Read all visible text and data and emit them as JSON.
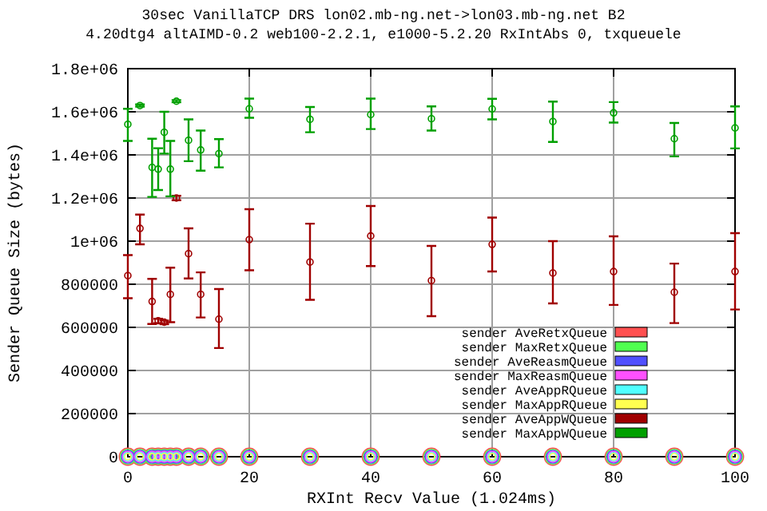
{
  "chart_data": {
    "type": "scatter",
    "title": "30sec VanillaTCP DRS lon02.mb-ng.net->lon03.mb-ng.net B2",
    "subtitle": "4.20dtg4 altAIMD-0.2 web100-2.2.1, e1000-5.2.20 RxIntAbs 0, txqueuele",
    "xlabel": "RXInt Recv Value (1.024ms)",
    "ylabel": "Sender Queue Size (bytes)",
    "x": [
      0,
      2,
      4,
      5,
      6,
      7,
      8,
      10,
      12,
      15,
      20,
      30,
      40,
      50,
      60,
      70,
      80,
      90,
      100
    ],
    "xlim": [
      0,
      100
    ],
    "xticks": [
      0,
      20,
      40,
      60,
      80,
      100
    ],
    "ylim": [
      0,
      1800000
    ],
    "yticks": [
      0,
      200000,
      400000,
      600000,
      800000,
      {
        "value": 1000000,
        "label": "1e+06"
      },
      {
        "value": 1200000,
        "label": "1.2e+06"
      },
      {
        "value": 1400000,
        "label": "1.4e+06"
      },
      {
        "value": 1600000,
        "label": "1.6e+06"
      },
      {
        "value": 1800000,
        "label": "1.8e+06"
      }
    ],
    "grid": true,
    "legend": "bottom right",
    "marker": "circle",
    "series": [
      {
        "name": "sender AveRetxQueue",
        "color": "#ff5050",
        "values": [
          0,
          0,
          0,
          0,
          0,
          0,
          0,
          0,
          0,
          0,
          0,
          0,
          0,
          0,
          0,
          0,
          0,
          0,
          0
        ]
      },
      {
        "name": "sender MaxRetxQueue",
        "color": "#50ff50",
        "values": [
          0,
          0,
          0,
          0,
          0,
          0,
          0,
          0,
          0,
          0,
          0,
          0,
          0,
          0,
          0,
          0,
          0,
          0,
          0
        ]
      },
      {
        "name": "sender AveReasmQueue",
        "color": "#5050ff",
        "values": [
          0,
          0,
          0,
          0,
          0,
          0,
          0,
          0,
          0,
          0,
          0,
          0,
          0,
          0,
          0,
          0,
          0,
          0,
          0
        ]
      },
      {
        "name": "sender MaxReasmQueue",
        "color": "#ff50ff",
        "values": [
          0,
          0,
          0,
          0,
          0,
          0,
          0,
          0,
          0,
          0,
          0,
          0,
          0,
          0,
          0,
          0,
          0,
          0,
          0
        ]
      },
      {
        "name": "sender AveAppRQueue",
        "color": "#50ffff",
        "values": [
          0,
          0,
          0,
          0,
          0,
          0,
          0,
          0,
          0,
          0,
          0,
          0,
          0,
          0,
          0,
          0,
          0,
          0,
          0
        ]
      },
      {
        "name": "sender MaxAppRQueue",
        "color": "#ffff50",
        "values": [
          0,
          0,
          0,
          0,
          0,
          0,
          0,
          0,
          0,
          0,
          0,
          0,
          0,
          0,
          0,
          0,
          0,
          0,
          0
        ]
      },
      {
        "name": "sender AveAppWQueue",
        "color": "#a00000",
        "values": [
          840000,
          1059000,
          720000,
          631000,
          624000,
          753000,
          1200000,
          942000,
          753000,
          638000,
          1007000,
          903000,
          1024000,
          817000,
          985000,
          852000,
          859000,
          763000,
          859000
        ],
        "errors": [
          [
            735000,
            935000
          ],
          [
            985000,
            1123000
          ],
          [
            616000,
            825000
          ],
          [
            620000,
            640000
          ],
          [
            615000,
            632000
          ],
          [
            624000,
            877000
          ],
          [
            1190000,
            1210000
          ],
          [
            827000,
            1059000
          ],
          [
            646000,
            855000
          ],
          [
            504000,
            778000
          ],
          [
            865000,
            1148000
          ],
          [
            728000,
            1081000
          ],
          [
            884000,
            1163000
          ],
          [
            652000,
            978000
          ],
          [
            859000,
            1109000
          ],
          [
            711000,
            1000000
          ],
          [
            704000,
            1022000
          ],
          [
            620000,
            896000
          ],
          [
            683000,
            1037000
          ]
        ]
      },
      {
        "name": "sender MaxAppWQueue",
        "color": "#00a000",
        "values": [
          1542000,
          1629000,
          1342000,
          1334000,
          1505000,
          1334000,
          1649000,
          1468000,
          1423000,
          1406000,
          1614000,
          1565000,
          1587000,
          1568000,
          1613000,
          1555000,
          1595000,
          1475000,
          1525000
        ],
        "errors": [
          [
            1465000,
            1614000
          ],
          [
            1624000,
            1634000
          ],
          [
            1205000,
            1475000
          ],
          [
            1237000,
            1431000
          ],
          [
            1406000,
            1600000
          ],
          [
            1208000,
            1465000
          ],
          [
            1644000,
            1654000
          ],
          [
            1371000,
            1565000
          ],
          [
            1327000,
            1513000
          ],
          [
            1342000,
            1473000
          ],
          [
            1572000,
            1661000
          ],
          [
            1505000,
            1622000
          ],
          [
            1520000,
            1661000
          ],
          [
            1513000,
            1625000
          ],
          [
            1565000,
            1660000
          ],
          [
            1460000,
            1647000
          ],
          [
            1550000,
            1645000
          ],
          [
            1393000,
            1548000
          ],
          [
            1430000,
            1625000
          ]
        ]
      }
    ]
  }
}
